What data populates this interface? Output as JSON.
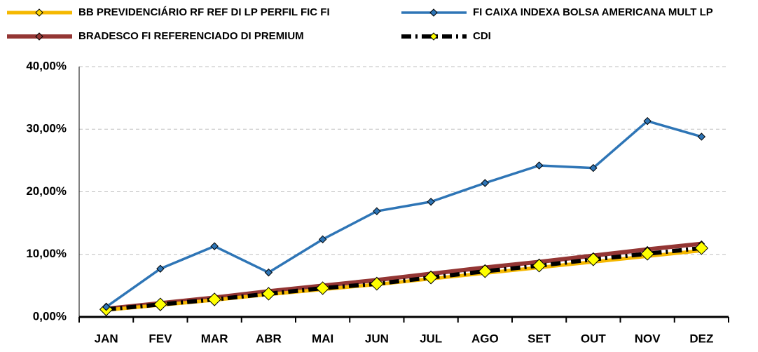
{
  "chart_data": {
    "type": "line",
    "categories": [
      "JAN",
      "FEV",
      "MAR",
      "ABR",
      "MAI",
      "JUN",
      "JUL",
      "AGO",
      "SET",
      "OUT",
      "NOV",
      "DEZ"
    ],
    "series": [
      {
        "name": "BB PREVIDENCIÁRIO RF REF DI LP PERFIL FIC FI",
        "color": "#f5b800",
        "marker_color": "#ffd700",
        "values": [
          1.1,
          1.9,
          2.7,
          3.6,
          4.4,
          5.2,
          6.1,
          7.0,
          7.9,
          8.8,
          9.7,
          10.6
        ]
      },
      {
        "name": "FI CAIXA INDEXA BOLSA AMERICANA MULT LP",
        "color": "#2e75b6",
        "marker_color": "#2e75b6",
        "values": [
          1.6,
          7.7,
          11.3,
          7.1,
          12.4,
          16.9,
          18.4,
          21.4,
          24.2,
          23.8,
          31.3,
          28.8
        ]
      },
      {
        "name": "BRADESCO FI REFERENCIADO DI PREMIUM",
        "color": "#943634",
        "marker_color": "#943634",
        "values": [
          1.3,
          2.2,
          3.1,
          4.1,
          5.0,
          5.9,
          6.9,
          7.9,
          8.8,
          9.8,
          10.8,
          11.7
        ]
      },
      {
        "name": "CDI",
        "color": "#000000",
        "marker_color": "#ffff00",
        "values": [
          1.2,
          2.0,
          2.8,
          3.7,
          4.6,
          5.3,
          6.3,
          7.3,
          8.2,
          9.2,
          10.1,
          11.0
        ]
      }
    ],
    "ylim": [
      0,
      40
    ],
    "yticks": [
      {
        "value": 0,
        "label": "0,00%"
      },
      {
        "value": 10,
        "label": "10,00%"
      },
      {
        "value": 20,
        "label": "20,00%"
      },
      {
        "value": 30,
        "label": "30,00%"
      },
      {
        "value": 40,
        "label": "40,00%"
      }
    ],
    "grid": true
  }
}
